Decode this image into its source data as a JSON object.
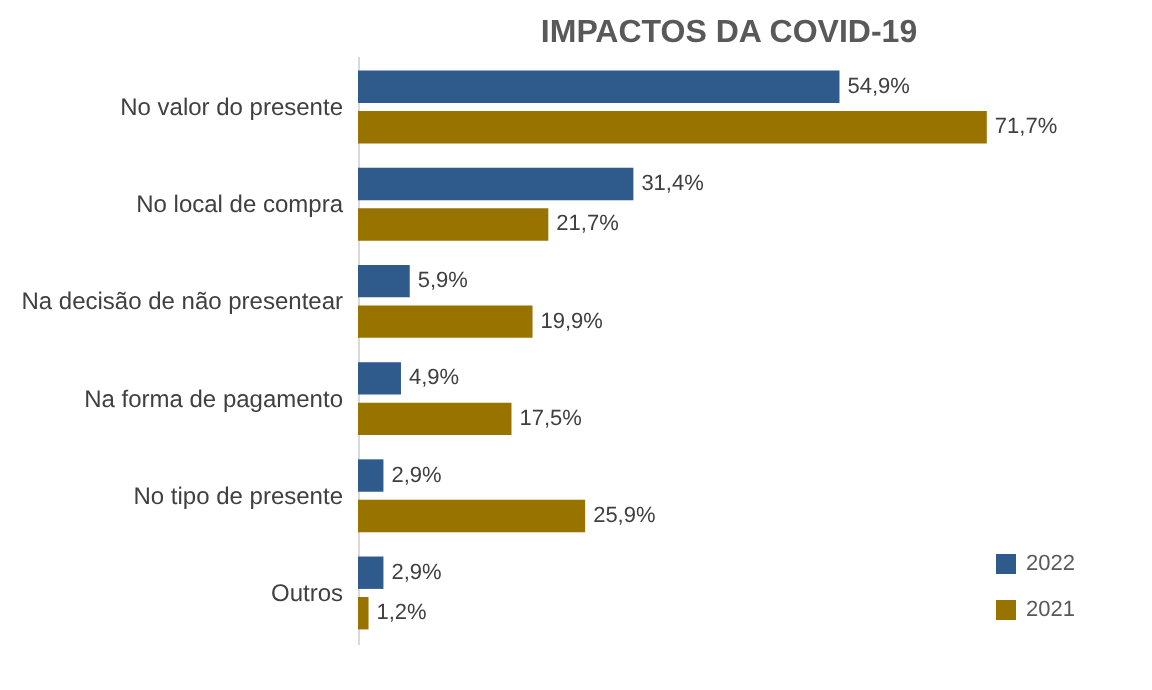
{
  "chart_data": {
    "type": "bar",
    "orientation": "horizontal",
    "title": "IMPACTOS DA COVID-19",
    "categories": [
      "No valor do presente",
      "No local de compra",
      "Na decisão de não presentear",
      "Na forma de pagamento",
      "No tipo de presente",
      "Outros"
    ],
    "series": [
      {
        "name": "2022",
        "color": "#2e5a8c",
        "values": [
          54.9,
          31.4,
          5.9,
          4.9,
          2.9,
          2.9
        ],
        "value_labels": [
          "54,9%",
          "31,4%",
          "5,9%",
          "4,9%",
          "2,9%",
          "2,9%"
        ]
      },
      {
        "name": "2021",
        "color": "#997300",
        "values": [
          71.7,
          21.7,
          19.9,
          17.5,
          25.9,
          1.2
        ],
        "value_labels": [
          "71,7%",
          "21,7%",
          "19,9%",
          "17,5%",
          "25,9%",
          "1,2%"
        ]
      }
    ],
    "legend": "bottom right",
    "grid": false
  }
}
